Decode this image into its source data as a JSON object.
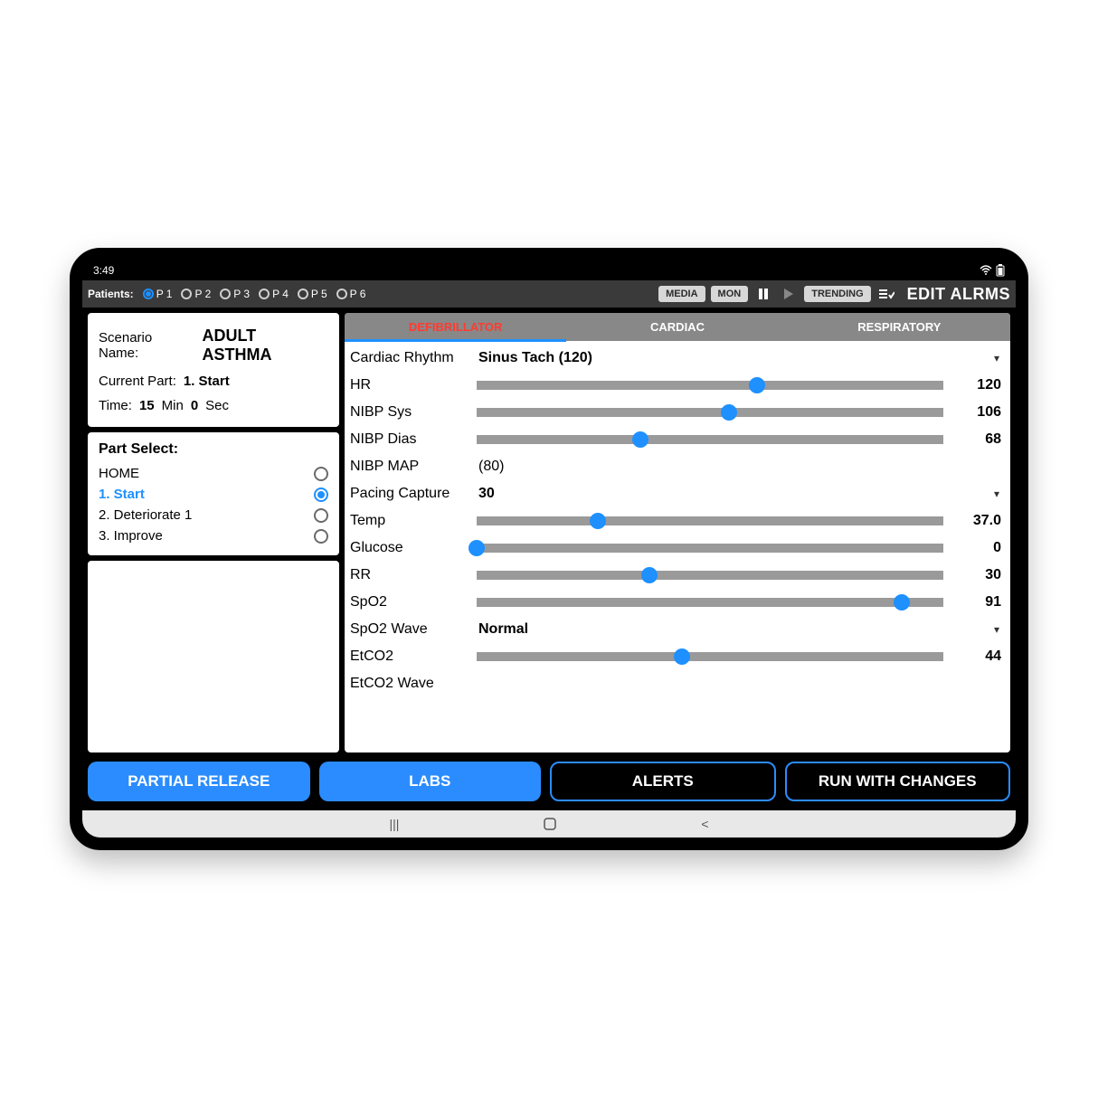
{
  "status": {
    "time": "3:49"
  },
  "toolbar": {
    "patients_label": "Patients:",
    "patients": [
      "P 1",
      "P 2",
      "P 3",
      "P 4",
      "P 5",
      "P 6"
    ],
    "selected_patient_index": 0,
    "media_btn": "MEDIA",
    "mon_btn": "MON",
    "trending_btn": "TRENDING",
    "edit_alarms": "EDIT ALRMS"
  },
  "scenario": {
    "name_label": "Scenario Name:",
    "name": "ADULT ASTHMA",
    "part_label": "Current Part:",
    "part": "1. Start",
    "time_label": "Time:",
    "time_min": "15",
    "min_label": "Min",
    "time_sec": "0",
    "sec_label": "Sec"
  },
  "partselect": {
    "title": "Part Select:",
    "items": [
      {
        "label": "HOME",
        "active": false
      },
      {
        "label": "1. Start",
        "active": true
      },
      {
        "label": "2. Deteriorate 1",
        "active": false
      },
      {
        "label": "3. Improve",
        "active": false
      }
    ]
  },
  "tabs": {
    "items": [
      "DEFIBRILLATOR",
      "CARDIAC",
      "RESPIRATORY"
    ],
    "active_index": 0
  },
  "params": [
    {
      "type": "select",
      "name": "Cardiac Rhythm",
      "value": "Sinus Tach (120)"
    },
    {
      "type": "slider",
      "name": "HR",
      "value": "120",
      "pct": 60
    },
    {
      "type": "slider",
      "name": "NIBP Sys",
      "value": "106",
      "pct": 54
    },
    {
      "type": "slider",
      "name": "NIBP Dias",
      "value": "68",
      "pct": 35
    },
    {
      "type": "text",
      "name": "NIBP MAP",
      "value": "(80)"
    },
    {
      "type": "select",
      "name": "Pacing Capture",
      "value": "30"
    },
    {
      "type": "slider",
      "name": "Temp",
      "value": "37.0",
      "pct": 26
    },
    {
      "type": "slider",
      "name": "Glucose",
      "value": "0",
      "pct": 0
    },
    {
      "type": "slider",
      "name": "RR",
      "value": "30",
      "pct": 37
    },
    {
      "type": "slider",
      "name": "SpO2",
      "value": "91",
      "pct": 91
    },
    {
      "type": "select",
      "name": "SpO2 Wave",
      "value": "Normal"
    },
    {
      "type": "slider",
      "name": "EtCO2",
      "value": "44",
      "pct": 44
    },
    {
      "type": "partial",
      "name": "EtCO2 Wave",
      "value": ""
    }
  ],
  "bottom": {
    "partial_release": "PARTIAL RELEASE",
    "labs": "LABS",
    "alerts": "ALERTS",
    "run": "RUN WITH CHANGES"
  },
  "colors": {
    "accent": "#1e90ff",
    "tab_active": "#ff3b30",
    "slider_track": "#9a9a9a",
    "tab_bg": "#888888"
  }
}
